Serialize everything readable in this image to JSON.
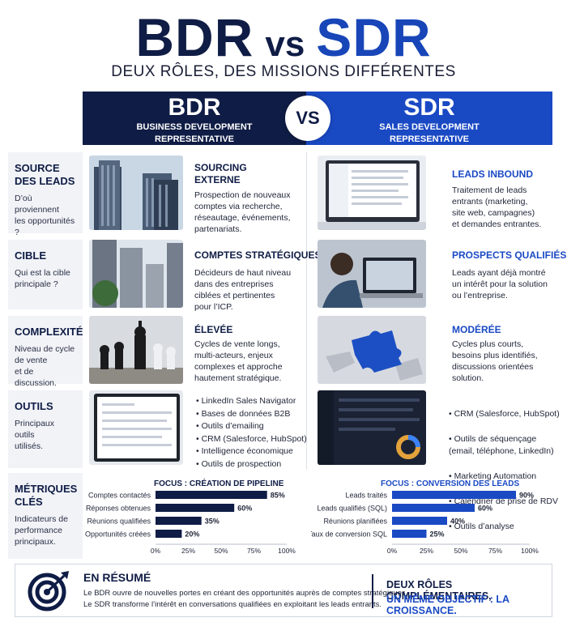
{
  "header": {
    "word_left": "BDR",
    "vs": "vs",
    "word_right": "SDR",
    "subtitle": "DEUX RÔLES, DES MISSIONS DIFFÉRENTES"
  },
  "banners": {
    "left": {
      "title": "BDR",
      "line1": "BUSINESS DEVELOPMENT",
      "line2": "REPRESENTATIVE"
    },
    "vs": "VS",
    "right": {
      "title": "SDR",
      "line1": "SALES DEVELOPMENT",
      "line2": "REPRESENTATIVE"
    }
  },
  "rows": [
    {
      "label": "SOURCE\nDES LEADS",
      "desc": "D’où proviennent\nles opportunités ?",
      "bdr_title": "SOURCING\nEXTERNE",
      "bdr_desc": "Prospection de nouveaux\ncomptes via recherche,\nréseautage, événements,\npartenariats.",
      "sdr_title": "LEADS INBOUND",
      "sdr_desc": "Traitement de leads\nentrants (marketing,\nsite web, campagnes)\net demandes entrantes."
    },
    {
      "label": "CIBLE",
      "desc": "Qui est la cible\nprincipale ?",
      "bdr_title": "COMPTES STRATÉGIQUES",
      "bdr_desc": "Décideurs de haut niveau\ndans des entreprises\nciblées et pertinentes\npour l’ICP.",
      "sdr_title": "PROSPECTS QUALIFIÉS",
      "sdr_desc": "Leads ayant déjà montré\nun intérêt pour la solution\nou l’entreprise."
    },
    {
      "label": "COMPLEXITÉ",
      "desc": "Niveau de cycle\nde vente\net de discussion.",
      "bdr_title": "ÉLEVÉE",
      "bdr_desc": "Cycles de vente longs,\nmulti-acteurs, enjeux\ncomplexes et approche\nhautement stratégique.",
      "sdr_title": "MODÉRÉE",
      "sdr_desc": "Cycles plus courts,\nbesoins plus identifiés,\ndiscussions orientées\nsolution."
    },
    {
      "label": "OUTILS",
      "desc": "Principaux outils\nutilisés.",
      "bdr_tools": [
        "LinkedIn Sales Navigator",
        "Bases de données B2B",
        "Outils d’emailing",
        "CRM (Salesforce, HubSpot)",
        "Intelligence économique",
        "Outils de prospection"
      ],
      "sdr_tools": [
        "CRM (Salesforce, HubSpot)",
        "Outils de séquençage\n(email, téléphone, LinkedIn)",
        "Marketing Automation",
        "Calendrier de prise de RDV",
        "Outils d’analyse"
      ]
    }
  ],
  "metrics": {
    "label": "MÉTRIQUES\nCLÉS",
    "desc": "Indicateurs de\nperformance\nprincipaux."
  },
  "chart_data": [
    {
      "type": "bar",
      "orientation": "horizontal",
      "title": "FOCUS : CRÉATION DE PIPELINE",
      "categories": [
        "Comptes contactés",
        "Réponses obtenues",
        "Réunions qualifiées",
        "Opportunités créées"
      ],
      "values": [
        85,
        60,
        35,
        20
      ],
      "value_labels": [
        "85%",
        "60%",
        "35%",
        "20%"
      ],
      "xlim": [
        0,
        100
      ],
      "xticks": [
        "0%",
        "25%",
        "50%",
        "75%",
        "100%"
      ],
      "color": "#0f1c45"
    },
    {
      "type": "bar",
      "orientation": "horizontal",
      "title": "FOCUS : CONVERSION DES LEADS",
      "categories": [
        "Leads traités",
        "Leads qualifiés (SQL)",
        "Réunions planifiées",
        "Taux de conversion SQL"
      ],
      "values": [
        90,
        60,
        40,
        25
      ],
      "value_labels": [
        "90%",
        "60%",
        "40%",
        "25%"
      ],
      "xlim": [
        0,
        100
      ],
      "xticks": [
        "0%",
        "25%",
        "50%",
        "75%",
        "100%"
      ],
      "color": "#1a49c4"
    }
  ],
  "summary": {
    "title": "EN RÉSUMÉ",
    "line1": "Le BDR ouvre de nouvelles portes en créant des opportunités auprès de comptes stratégiques.",
    "line2": "Le SDR transforme l’intérêt en conversations qualifiées en exploitant les leads entrants.",
    "right1": "DEUX RÔLES COMPLÉMENTAIRES,",
    "right2": "UN MÊME OBJECTIF : LA CROISSANCE."
  },
  "icons": [
    "target-arrow-icon"
  ],
  "colors": {
    "navy": "#0f1c45",
    "blue": "#1a49c4",
    "row_bg": "#f1f3f7"
  }
}
